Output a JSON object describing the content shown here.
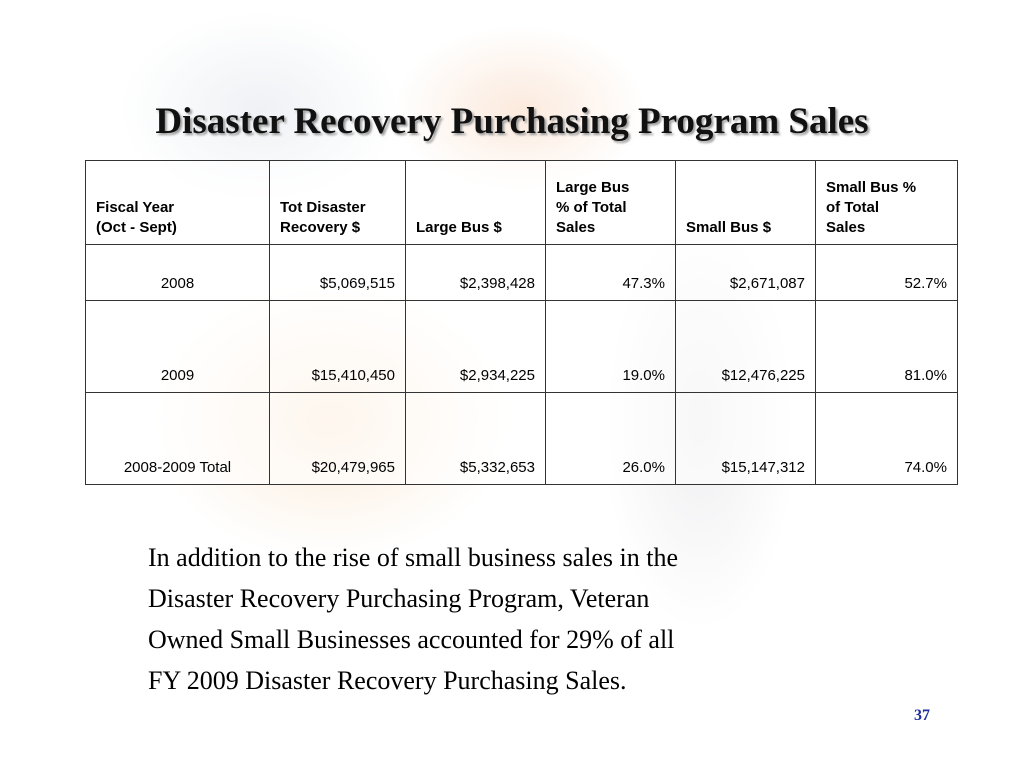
{
  "title": "Disaster Recovery Purchasing Program Sales",
  "table": {
    "header": [
      [
        "Fiscal Year",
        "(Oct - Sept)"
      ],
      [
        "Tot Disaster",
        "Recovery $"
      ],
      [
        "Large Bus $"
      ],
      [
        "Large Bus",
        "% of Total",
        "Sales"
      ],
      [
        "Small Bus $"
      ],
      [
        "Small Bus %",
        "of Total",
        "Sales"
      ]
    ],
    "rows": [
      [
        "2008",
        "$5,069,515",
        "$2,398,428",
        "47.3%",
        "$2,671,087",
        "52.7%"
      ],
      [
        "2009",
        "$15,410,450",
        "$2,934,225",
        "19.0%",
        "$12,476,225",
        "81.0%"
      ],
      [
        "2008-2009 Total",
        "$20,479,965",
        "$5,332,653",
        "26.0%",
        "$15,147,312",
        "74.0%"
      ]
    ]
  },
  "paragraph": [
    "In addition to the rise of small business sales in the",
    "Disaster Recovery Purchasing Program, Veteran",
    "Owned Small Businesses accounted for 29% of all",
    "FY 2009 Disaster Recovery Purchasing Sales."
  ],
  "page_number": "37"
}
